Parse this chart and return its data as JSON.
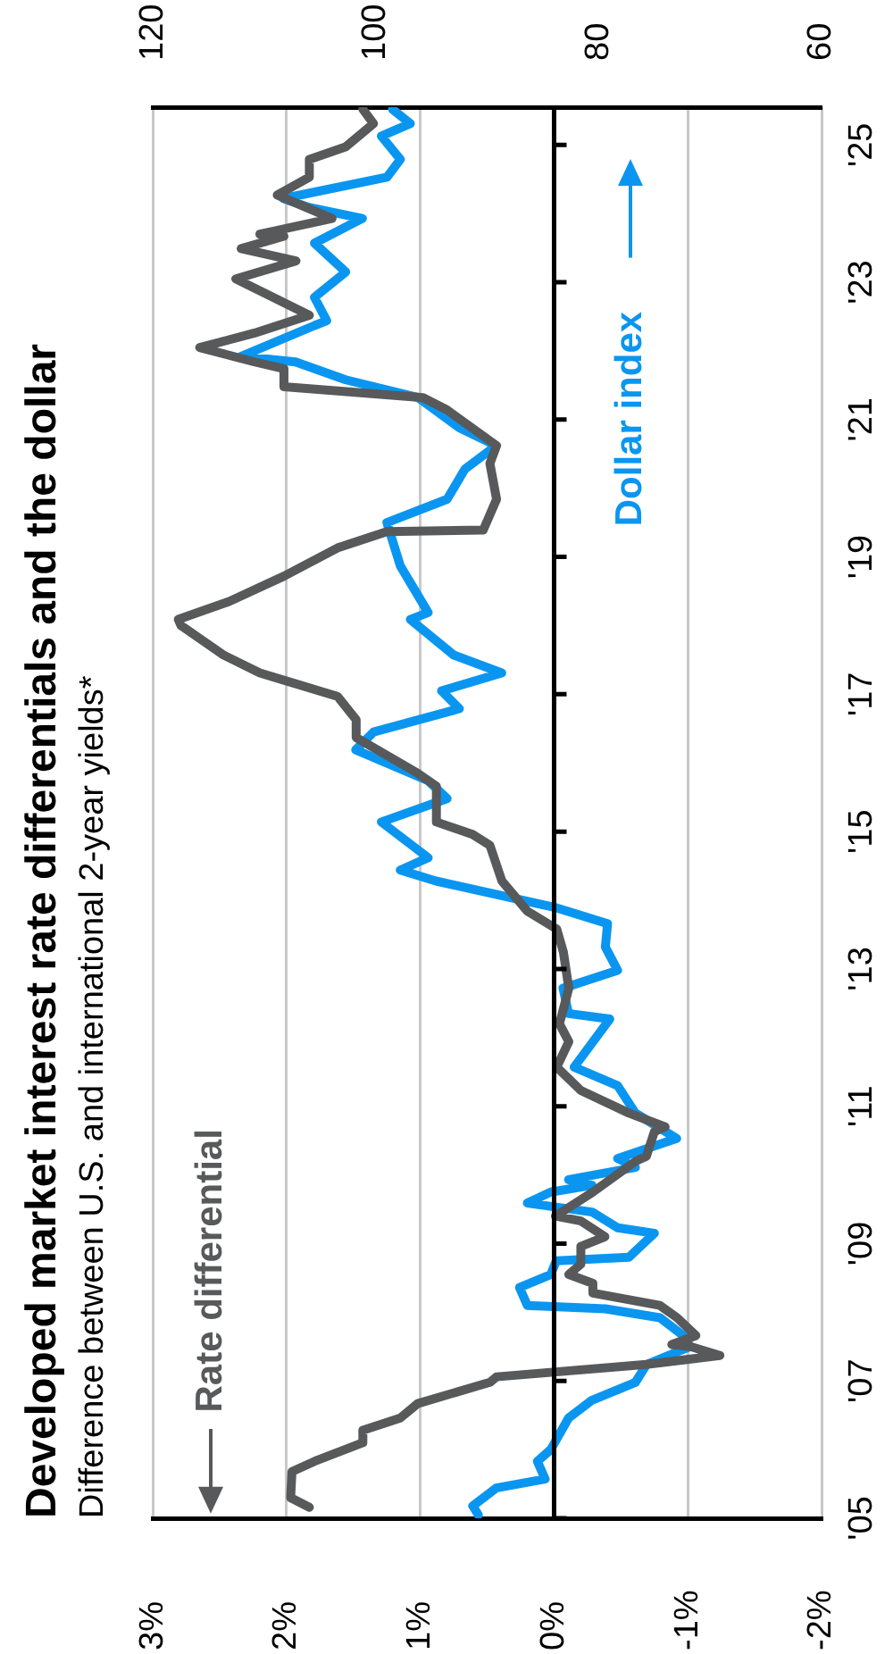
{
  "chart_data": {
    "type": "line",
    "title": "Developed market interest rate differentials and the dollar",
    "subtitle": "Difference between U.S. and international 2-year yields*",
    "xlim": [
      3,
      -2
    ],
    "xticks": [
      {
        "value": 3,
        "label": "3%"
      },
      {
        "value": 2,
        "label": "2%"
      },
      {
        "value": 1,
        "label": "1%"
      },
      {
        "value": 0,
        "label": "0%"
      },
      {
        "value": -1,
        "label": "-1%"
      },
      {
        "value": -2,
        "label": "-2%"
      }
    ],
    "x2lim": [
      120,
      60
    ],
    "x2ticks": [
      120,
      100,
      80,
      60
    ],
    "ylim": [
      2005,
      2025.55
    ],
    "yticks": [
      {
        "value": 2005,
        "label": "'05"
      },
      {
        "value": 2007,
        "label": "'07"
      },
      {
        "value": 2009,
        "label": "'09"
      },
      {
        "value": 2011,
        "label": "'11"
      },
      {
        "value": 2013,
        "label": "'13"
      },
      {
        "value": 2015,
        "label": "'15"
      },
      {
        "value": 2017,
        "label": "'17"
      },
      {
        "value": 2019,
        "label": "'19"
      },
      {
        "value": 2021,
        "label": "'21"
      },
      {
        "value": 2023,
        "label": "'23"
      },
      {
        "value": 2025,
        "label": "'25"
      }
    ],
    "grid": "x",
    "legend": false,
    "ref_lines": [
      {
        "axis": "x",
        "value": 0,
        "color": "#000000"
      }
    ],
    "series": [
      {
        "name": "Rate differential",
        "color": "#58595b",
        "values": [
          2005.16,
          2005.3,
          2005.68,
          2005.83,
          2006.1,
          2006.28,
          2006.46,
          2006.67,
          2006.98,
          2007.06,
          2007.24,
          2007.37,
          2007.5,
          2007.53,
          2007.66,
          2007.92,
          2008.1,
          2008.28,
          2008.42,
          2008.55,
          2008.7,
          2008.96,
          2009.1,
          2009.33,
          2009.4,
          2009.75,
          2010.2,
          2010.27,
          2010.63,
          2010.7,
          2010.9,
          2011.23,
          2011.57,
          2011.94,
          2012.2,
          2012.72,
          2013.24,
          2013.58,
          2013.84,
          2014.28,
          2014.8,
          2014.96,
          2015.14,
          2015.66,
          2015.85,
          2016.37,
          2016.63,
          2016.97,
          2017.31,
          2017.57,
          2018.0,
          2018.09,
          2018.35,
          2018.72,
          2019.13,
          2019.37,
          2019.39,
          2019.84,
          2020.36,
          2020.62,
          2021.14,
          2021.32,
          2021.48,
          2021.74,
          2021.84,
          2022.05,
          2022.26,
          2022.52,
          2023.05,
          2023.31,
          2023.49,
          2023.67,
          2023.7,
          2023.93,
          2024.27,
          2024.53,
          2024.79,
          2024.97,
          2025.31,
          2025.52
        ],
        "x": [
          1.83,
          1.97,
          1.96,
          1.79,
          1.43,
          1.43,
          1.15,
          1.02,
          0.48,
          0.43,
          -0.69,
          -1.24,
          -1.02,
          -0.88,
          -1.06,
          -0.92,
          -0.79,
          -0.29,
          -0.29,
          -0.11,
          -0.2,
          -0.2,
          -0.38,
          -0.2,
          -0.01,
          -0.29,
          -0.61,
          -0.69,
          -0.75,
          -0.83,
          -0.56,
          -0.2,
          -0.02,
          -0.11,
          -0.04,
          -0.11,
          -0.07,
          -0.02,
          0.2,
          0.39,
          0.48,
          0.61,
          0.88,
          0.88,
          1.02,
          1.48,
          1.48,
          1.62,
          2.2,
          2.47,
          2.79,
          2.81,
          2.43,
          2.02,
          1.62,
          1.25,
          0.53,
          0.43,
          0.48,
          0.43,
          0.8,
          0.98,
          2.02,
          2.02,
          2.24,
          2.65,
          2.24,
          1.83,
          2.38,
          1.93,
          2.34,
          2.02,
          2.2,
          1.66,
          2.07,
          1.83,
          1.83,
          1.56,
          1.35,
          1.43
        ]
      },
      {
        "name": "Dollar index",
        "color": "#0a96f0",
        "axis": "x2",
        "values": [
          2005.05,
          2005.18,
          2005.44,
          2005.57,
          2005.83,
          2006.0,
          2006.46,
          2006.72,
          2006.98,
          2007.24,
          2007.5,
          2007.66,
          2007.92,
          2008.05,
          2008.1,
          2008.36,
          2008.55,
          2008.75,
          2008.8,
          2009.15,
          2009.23,
          2009.46,
          2009.59,
          2009.75,
          2009.85,
          2009.93,
          2010.11,
          2010.24,
          2010.53,
          2010.9,
          2011.3,
          2011.57,
          2012.27,
          2012.35,
          2012.72,
          2012.98,
          2013.32,
          2013.66,
          2013.89,
          2014.28,
          2014.44,
          2014.62,
          2015.14,
          2015.48,
          2015.74,
          2016.19,
          2016.45,
          2016.79,
          2017.05,
          2017.31,
          2017.57,
          2017.93,
          2018.09,
          2018.19,
          2018.87,
          2019.5,
          2019.84,
          2020.28,
          2020.62,
          2020.88,
          2021.32,
          2021.58,
          2021.84,
          2021.92,
          2022.37,
          2022.44,
          2022.78,
          2023.15,
          2023.57,
          2023.93,
          2024.09,
          2024.22,
          2024.53,
          2024.79,
          2025.13,
          2025.31,
          2025.52
        ],
        "x": [
          90.8,
          91.3,
          89.2,
          84.8,
          85.5,
          84.3,
          82.7,
          80.6,
          76.7,
          75.7,
          71.8,
          72.4,
          74.5,
          79.4,
          86.4,
          87.1,
          84.3,
          83.8,
          77.3,
          75.0,
          78.3,
          80.6,
          86.4,
          84.3,
          80.6,
          82.7,
          76.7,
          78.3,
          73.0,
          76.7,
          78.3,
          82.2,
          79.0,
          82.7,
          83.2,
          78.3,
          79.4,
          79.2,
          83.8,
          94.6,
          97.8,
          95.3,
          99.5,
          93.6,
          95.3,
          101.8,
          100.2,
          92.5,
          94.1,
          88.7,
          93.0,
          95.7,
          96.9,
          95.3,
          97.8,
          99.0,
          93.6,
          92.0,
          89.2,
          92.5,
          96.2,
          102.7,
          107.2,
          112.1,
          105.5,
          104.4,
          105.5,
          102.7,
          105.5,
          101.2,
          106.0,
          108.3,
          99.0,
          97.8,
          99.5,
          96.9,
          98.5
        ]
      }
    ]
  }
}
